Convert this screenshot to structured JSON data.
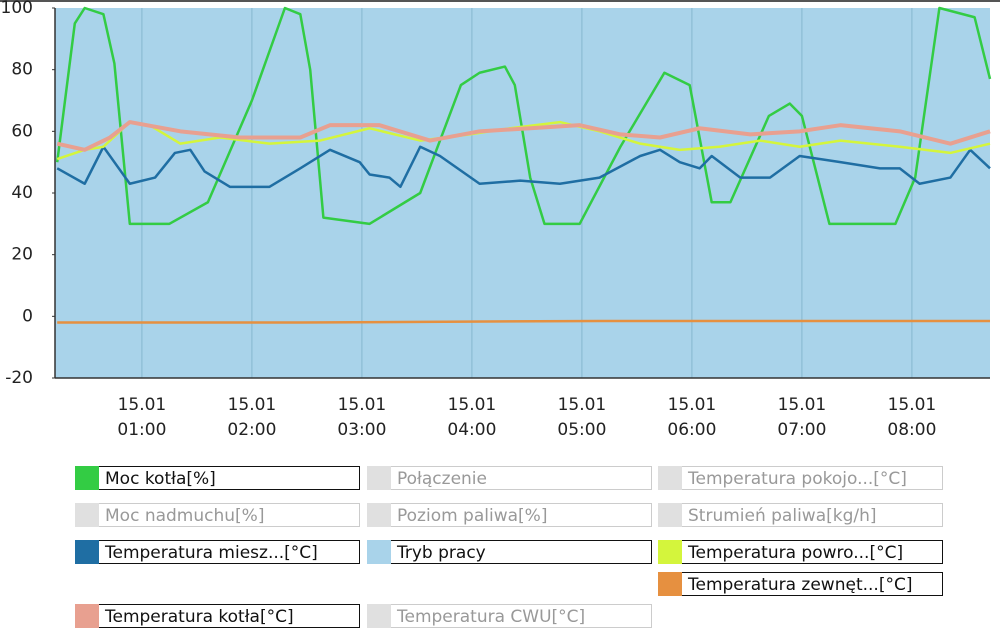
{
  "chart_data": {
    "type": "line",
    "xlim": [
      0.21,
      8.71
    ],
    "ylim": [
      -20,
      100
    ],
    "yticks": [
      -20,
      0,
      20,
      40,
      60,
      80,
      100
    ],
    "xticks": [
      {
        "value": 1,
        "label": "15.01 01:00"
      },
      {
        "value": 2,
        "label": "15.01 02:00"
      },
      {
        "value": 3,
        "label": "15.01 03:00"
      },
      {
        "value": 4,
        "label": "15.01 04:00"
      },
      {
        "value": 5,
        "label": "15.01 05:00"
      },
      {
        "value": 6,
        "label": "15.01 06:00"
      },
      {
        "value": 7,
        "label": "15.01 07:00"
      },
      {
        "value": 8,
        "label": "15.01 08:00"
      }
    ],
    "grid": "x",
    "series": [
      {
        "name": "Moc kotła[%]",
        "color": "#33cc44",
        "type": "line",
        "x": [
          0.23,
          0.39,
          0.48,
          0.65,
          0.75,
          0.89,
          1.25,
          1.6,
          2.0,
          2.3,
          2.44,
          2.53,
          2.65,
          3.07,
          3.53,
          3.9,
          4.07,
          4.3,
          4.39,
          4.53,
          4.66,
          4.98,
          5.35,
          5.75,
          5.98,
          6.18,
          6.35,
          6.7,
          6.89,
          7.0,
          7.25,
          7.85,
          8.03,
          8.25,
          8.57,
          8.71
        ],
        "values": [
          50,
          95,
          100,
          98,
          82,
          30,
          30,
          37,
          70,
          100,
          98,
          80,
          32,
          30,
          40,
          75,
          79,
          81,
          75,
          45,
          30,
          30,
          55,
          79,
          75,
          37,
          37,
          65,
          69,
          65,
          30,
          30,
          45,
          100,
          97,
          77
        ]
      },
      {
        "name": "Temperatura miesz...[°C]",
        "color": "#1f6ea3",
        "type": "line",
        "x": [
          0.23,
          0.48,
          0.65,
          0.89,
          1.12,
          1.3,
          1.44,
          1.57,
          1.8,
          2.16,
          2.44,
          2.71,
          2.98,
          3.07,
          3.25,
          3.35,
          3.53,
          3.71,
          4.07,
          4.44,
          4.8,
          5.16,
          5.53,
          5.71,
          5.89,
          6.07,
          6.18,
          6.44,
          6.71,
          6.98,
          7.35,
          7.71,
          7.89,
          8.07,
          8.35,
          8.53,
          8.71
        ],
        "values": [
          48,
          43,
          55,
          43,
          45,
          53,
          54,
          47,
          42,
          42,
          48,
          54,
          50,
          46,
          45,
          42,
          55,
          52,
          43,
          44,
          43,
          45,
          52,
          54,
          50,
          48,
          52,
          45,
          45,
          52,
          50,
          48,
          48,
          43,
          45,
          54,
          48
        ]
      },
      {
        "name": "Tryb pracy",
        "color": "#a9d3ea",
        "type": "area",
        "x": [
          0.21,
          8.71
        ],
        "values": [
          100,
          100
        ]
      },
      {
        "name": "Temperatura powro...[°C]",
        "color": "#d4f53c",
        "type": "line",
        "x": [
          0.23,
          0.48,
          0.65,
          0.89,
          1.07,
          1.35,
          1.71,
          2.16,
          2.62,
          3.07,
          3.53,
          3.98,
          4.35,
          4.8,
          5.16,
          5.53,
          5.89,
          6.25,
          6.62,
          6.98,
          7.35,
          7.89,
          8.35,
          8.71
        ],
        "values": [
          51,
          54,
          55,
          63,
          62,
          56,
          58,
          56,
          57,
          61,
          57,
          59,
          61,
          63,
          60,
          56,
          54,
          55,
          57,
          55,
          57,
          55,
          53,
          56
        ]
      },
      {
        "name": "Temperatura zewnęt...[°C]",
        "color": "#e69040",
        "type": "line",
        "x": [
          0.23,
          2.44,
          5.16,
          8.71
        ],
        "values": [
          -2,
          -2,
          -1.5,
          -1.5
        ]
      },
      {
        "name": "Temperatura kotła[°C]",
        "color": "#e8a090",
        "type": "line",
        "x": [
          0.23,
          0.48,
          0.71,
          0.89,
          1.35,
          1.89,
          2.44,
          2.71,
          3.16,
          3.62,
          4.07,
          4.53,
          4.98,
          5.35,
          5.71,
          6.07,
          6.53,
          6.98,
          7.35,
          7.89,
          8.35,
          8.71
        ],
        "values": [
          56,
          54,
          58,
          63,
          60,
          58,
          58,
          62,
          62,
          57,
          60,
          61,
          62,
          59,
          58,
          61,
          59,
          60,
          62,
          60,
          56,
          60
        ]
      }
    ],
    "inactive_series": [
      {
        "name": "Połączenie",
        "color": "#e0e0e0"
      },
      {
        "name": "Temperatura pokojo...[°C]",
        "color": "#e0e0e0"
      },
      {
        "name": "Moc nadmuchu[%]",
        "color": "#e0e0e0"
      },
      {
        "name": "Poziom paliwa[%]",
        "color": "#e0e0e0"
      },
      {
        "name": "Strumień paliwa[kg/h]",
        "color": "#e0e0e0"
      },
      {
        "name": "Temperatura CWU[°C]",
        "color": "#e0e0e0"
      }
    ]
  }
}
